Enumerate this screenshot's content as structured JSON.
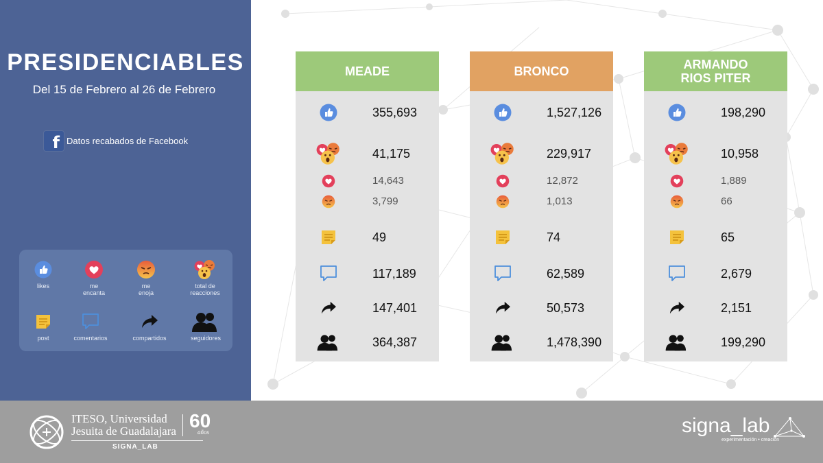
{
  "header": {
    "title": "PRESIDENCIABLES",
    "subtitle": "Del 15 de Febrero al 26 de Febrero"
  },
  "source": {
    "label": "Datos recabados de Facebook",
    "icon": "facebook-icon"
  },
  "legend": [
    {
      "icon": "like-icon",
      "label": "likes"
    },
    {
      "icon": "love-icon",
      "label": "me encanta"
    },
    {
      "icon": "angry-icon",
      "label": "me enoja"
    },
    {
      "icon": "reactions-icon",
      "label": "total de reacciones"
    },
    {
      "icon": "post-icon",
      "label": "post"
    },
    {
      "icon": "comment-icon",
      "label": "comentarios"
    },
    {
      "icon": "share-icon",
      "label": "compartidos"
    },
    {
      "icon": "followers-icon",
      "label": "seguidores"
    }
  ],
  "candidates": [
    {
      "name": "MEADE",
      "header_color": "#9dc97a",
      "metrics": {
        "likes": "355,693",
        "total_reacciones": "41,175",
        "me_encanta": "14,643",
        "me_enoja": "3,799",
        "post": "49",
        "comentarios": "117,189",
        "compartidos": "147,401",
        "seguidores": "364,387"
      }
    },
    {
      "name": "BRONCO",
      "header_color": "#e1a262",
      "metrics": {
        "likes": "1,527,126",
        "total_reacciones": "229,917",
        "me_encanta": "12,872",
        "me_enoja": "1,013",
        "post": "74",
        "comentarios": "62,589",
        "compartidos": "50,573",
        "seguidores": "1,478,390"
      }
    },
    {
      "name": "ARMANDO RIOS PITER",
      "header_color": "#9dc97a",
      "metrics": {
        "likes": "198,290",
        "total_reacciones": "10,958",
        "me_encanta": "1,889",
        "me_enoja": "66",
        "post": "65",
        "comentarios": "2,679",
        "compartidos": "2,151",
        "seguidores": "199,290"
      }
    }
  ],
  "footer": {
    "institution_line1": "ITESO, Universidad",
    "institution_line2": "Jesuita de Guadalajara",
    "lab": "SIGNA_LAB",
    "anniversary_number": "60",
    "anniversary_label": "años",
    "brand": "signa_lab",
    "brand_tagline": "experimentación • creación"
  },
  "colors": {
    "left_panel": "#4d6395",
    "legend_box": "#6078a7",
    "column_bg": "#e3e3e3",
    "footer_bg": "#9e9e9e"
  }
}
